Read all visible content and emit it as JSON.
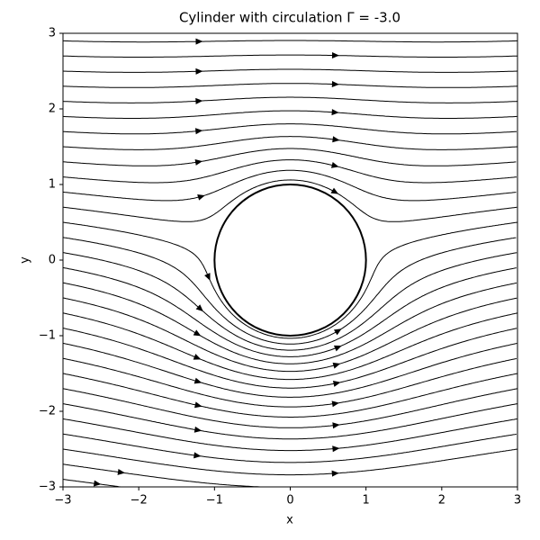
{
  "chart_data": {
    "type": "streamplot",
    "title": "Cylinder with circulation Γ = -3.0",
    "circulation": -3.0,
    "cylinder": {
      "center": [
        0,
        0
      ],
      "radius": 1
    },
    "xlabel": "x",
    "ylabel": "y",
    "xlim": [
      -3,
      3
    ],
    "ylim": [
      -3,
      3
    ],
    "xticks": [
      {
        "value": -3,
        "label": "−3"
      },
      {
        "value": -2,
        "label": "−2"
      },
      {
        "value": -1,
        "label": "−1"
      },
      0,
      1,
      2,
      3
    ],
    "yticks": [
      {
        "value": -3,
        "label": "−3"
      },
      {
        "value": -2,
        "label": "−2"
      },
      {
        "value": -1,
        "label": "−1"
      },
      0,
      1,
      2,
      3
    ],
    "color": "#000000"
  }
}
